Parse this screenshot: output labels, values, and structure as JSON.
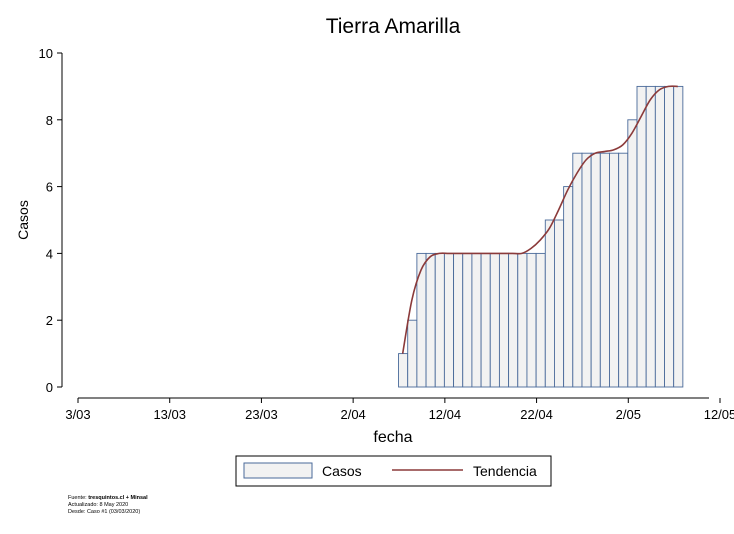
{
  "chart_data": {
    "type": "bar",
    "title": "Tierra Amarilla",
    "xlabel": "fecha",
    "ylabel": "Casos",
    "ylim": [
      0,
      10
    ],
    "yticks": [
      0,
      2,
      4,
      6,
      8,
      10
    ],
    "xlim": [
      "2020-03-03",
      "2020-05-12"
    ],
    "xticks": [
      {
        "date": "2020-03-03",
        "label": "3/03"
      },
      {
        "date": "2020-03-13",
        "label": "13/03"
      },
      {
        "date": "2020-03-23",
        "label": "23/03"
      },
      {
        "date": "2020-04-02",
        "label": "2/04"
      },
      {
        "date": "2020-04-12",
        "label": "12/04"
      },
      {
        "date": "2020-04-22",
        "label": "22/04"
      },
      {
        "date": "2020-05-02",
        "label": "2/05"
      },
      {
        "date": "2020-05-12",
        "label": "12/05"
      }
    ],
    "grid": false,
    "legend": {
      "position": "bottom"
    },
    "series": [
      {
        "name": "Casos",
        "type": "bar",
        "color": "#f2f2f2",
        "edge_color": "#4a6a9a",
        "x": [
          "2020-04-07",
          "2020-04-08",
          "2020-04-09",
          "2020-04-10",
          "2020-04-11",
          "2020-04-12",
          "2020-04-13",
          "2020-04-14",
          "2020-04-15",
          "2020-04-16",
          "2020-04-17",
          "2020-04-18",
          "2020-04-19",
          "2020-04-20",
          "2020-04-21",
          "2020-04-22",
          "2020-04-23",
          "2020-04-24",
          "2020-04-25",
          "2020-04-26",
          "2020-04-27",
          "2020-04-28",
          "2020-04-29",
          "2020-04-30",
          "2020-05-01",
          "2020-05-02",
          "2020-05-03",
          "2020-05-04",
          "2020-05-05",
          "2020-05-06",
          "2020-05-07"
        ],
        "values": [
          1,
          2,
          4,
          4,
          4,
          4,
          4,
          4,
          4,
          4,
          4,
          4,
          4,
          4,
          4,
          4,
          5,
          5,
          6,
          7,
          7,
          7,
          7,
          7,
          7,
          8,
          9,
          9,
          9,
          9,
          9
        ]
      },
      {
        "name": "Tendencia",
        "type": "line",
        "color": "#8b3a3a",
        "x": [
          "2020-04-07",
          "2020-04-08",
          "2020-04-09",
          "2020-04-10",
          "2020-04-11",
          "2020-04-12",
          "2020-04-13",
          "2020-04-14",
          "2020-04-15",
          "2020-04-16",
          "2020-04-17",
          "2020-04-18",
          "2020-04-19",
          "2020-04-20",
          "2020-04-21",
          "2020-04-22",
          "2020-04-23",
          "2020-04-24",
          "2020-04-25",
          "2020-04-26",
          "2020-04-27",
          "2020-04-28",
          "2020-04-29",
          "2020-04-30",
          "2020-05-01",
          "2020-05-02",
          "2020-05-03",
          "2020-05-04",
          "2020-05-05",
          "2020-05-06",
          "2020-05-07"
        ],
        "values": [
          1.0,
          2.6,
          3.5,
          3.9,
          4.0,
          4.0,
          4.0,
          4.0,
          4.0,
          4.0,
          4.0,
          4.0,
          4.0,
          4.0,
          4.15,
          4.4,
          4.75,
          5.3,
          5.9,
          6.4,
          6.8,
          7.0,
          7.05,
          7.1,
          7.25,
          7.6,
          8.1,
          8.6,
          8.9,
          9.0,
          9.0
        ]
      }
    ]
  },
  "footer": {
    "source_prefix": "Fuente: ",
    "source_bold": "tresquintos.cl + Minsal",
    "updated": "Actualizado: 8 May 2020",
    "since": "Desde: Caso #1  (03/03/2020)"
  }
}
